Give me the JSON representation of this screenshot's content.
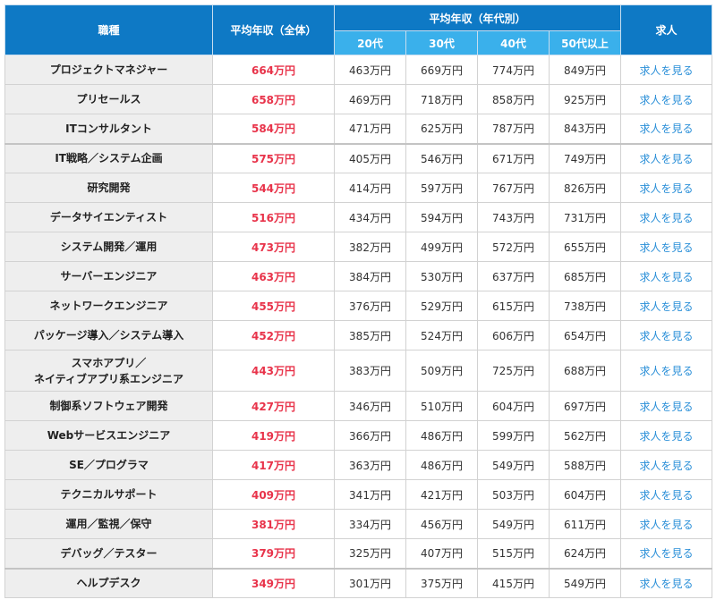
{
  "header": {
    "job": "職種",
    "overall": "平均年収（全体）",
    "by_age": "平均年収（年代別）",
    "ages": [
      "20代",
      "30代",
      "40代",
      "50代以上"
    ],
    "jobs_col": "求人"
  },
  "link_label": "求人を見る",
  "rows": [
    {
      "job": "プロジェクトマネジャー",
      "overall": "664万円",
      "a20": "463万円",
      "a30": "669万円",
      "a40": "774万円",
      "a50": "849万円"
    },
    {
      "job": "プリセールス",
      "overall": "658万円",
      "a20": "469万円",
      "a30": "718万円",
      "a40": "858万円",
      "a50": "925万円"
    },
    {
      "job": "ITコンサルタント",
      "overall": "584万円",
      "a20": "471万円",
      "a30": "625万円",
      "a40": "787万円",
      "a50": "843万円"
    },
    {
      "job": "IT戦略／システム企画",
      "overall": "575万円",
      "a20": "405万円",
      "a30": "546万円",
      "a40": "671万円",
      "a50": "749万円"
    },
    {
      "job": "研究開発",
      "overall": "544万円",
      "a20": "414万円",
      "a30": "597万円",
      "a40": "767万円",
      "a50": "826万円"
    },
    {
      "job": "データサイエンティスト",
      "overall": "516万円",
      "a20": "434万円",
      "a30": "594万円",
      "a40": "743万円",
      "a50": "731万円"
    },
    {
      "job": "システム開発／運用",
      "overall": "473万円",
      "a20": "382万円",
      "a30": "499万円",
      "a40": "572万円",
      "a50": "655万円"
    },
    {
      "job": "サーバーエンジニア",
      "overall": "463万円",
      "a20": "384万円",
      "a30": "530万円",
      "a40": "637万円",
      "a50": "685万円"
    },
    {
      "job": "ネットワークエンジニア",
      "overall": "455万円",
      "a20": "376万円",
      "a30": "529万円",
      "a40": "615万円",
      "a50": "738万円"
    },
    {
      "job": "パッケージ導入／システム導入",
      "overall": "452万円",
      "a20": "385万円",
      "a30": "524万円",
      "a40": "606万円",
      "a50": "654万円"
    },
    {
      "job": "スマホアプリ／",
      "job2": "ネイティブアプリ系エンジニア",
      "overall": "443万円",
      "a20": "383万円",
      "a30": "509万円",
      "a40": "725万円",
      "a50": "688万円"
    },
    {
      "job": "制御系ソフトウェア開発",
      "overall": "427万円",
      "a20": "346万円",
      "a30": "510万円",
      "a40": "604万円",
      "a50": "697万円"
    },
    {
      "job": "Webサービスエンジニア",
      "overall": "419万円",
      "a20": "366万円",
      "a30": "486万円",
      "a40": "599万円",
      "a50": "562万円"
    },
    {
      "job": "SE／プログラマ",
      "overall": "417万円",
      "a20": "363万円",
      "a30": "486万円",
      "a40": "549万円",
      "a50": "588万円"
    },
    {
      "job": "テクニカルサポート",
      "overall": "409万円",
      "a20": "341万円",
      "a30": "421万円",
      "a40": "503万円",
      "a50": "604万円"
    },
    {
      "job": "運用／監視／保守",
      "overall": "381万円",
      "a20": "334万円",
      "a30": "456万円",
      "a40": "549万円",
      "a50": "611万円"
    },
    {
      "job": "デバッグ／テスター",
      "overall": "379万円",
      "a20": "325万円",
      "a30": "407万円",
      "a40": "515万円",
      "a50": "624万円"
    },
    {
      "job": "ヘルプデスク",
      "overall": "349万円",
      "a20": "301万円",
      "a30": "375万円",
      "a40": "415万円",
      "a50": "549万円"
    }
  ]
}
